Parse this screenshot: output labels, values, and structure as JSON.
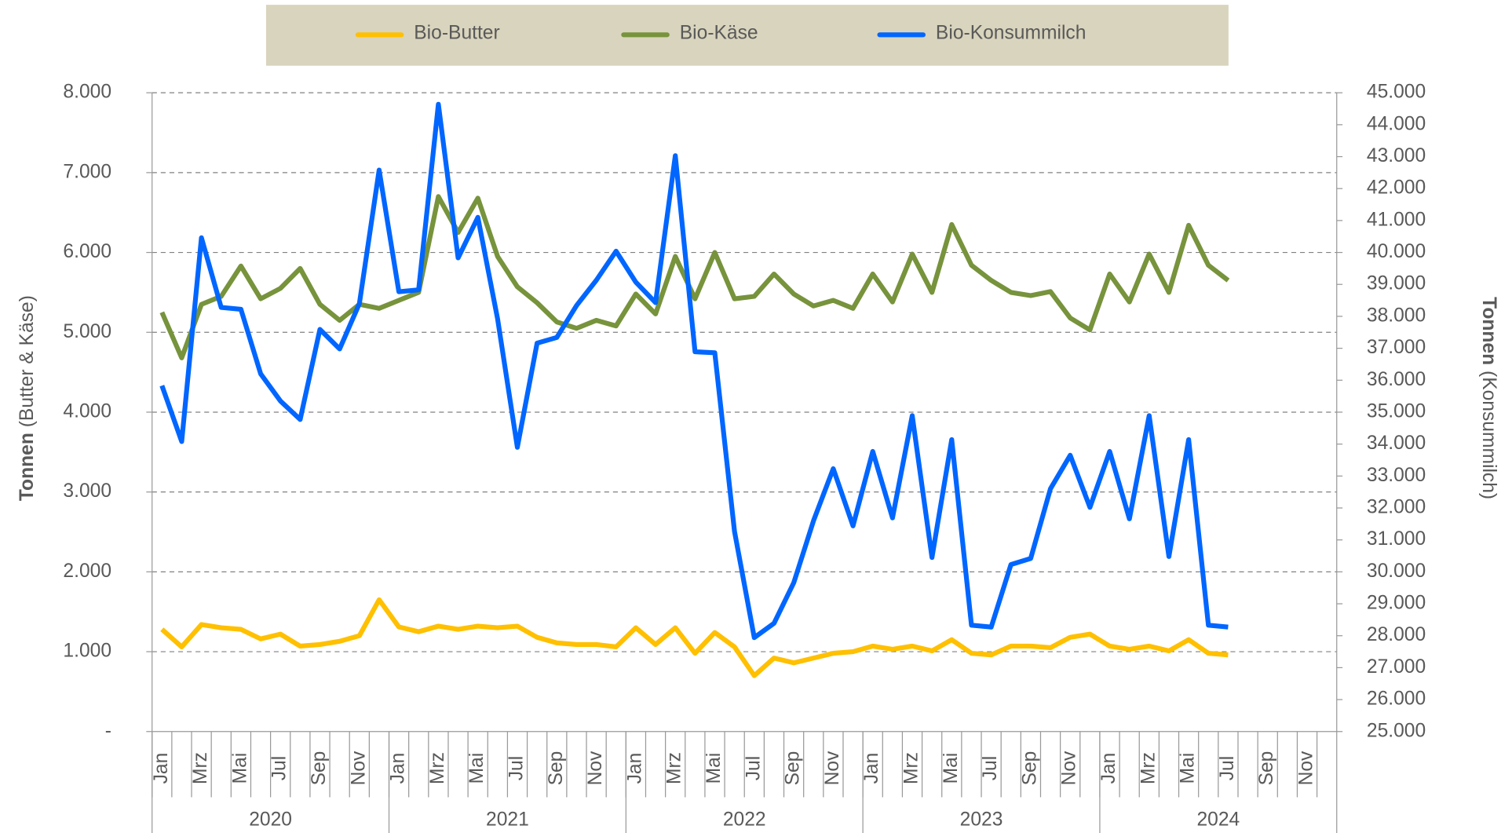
{
  "chart_data": {
    "type": "line",
    "categories": [
      "Jan",
      null,
      "Mrz",
      null,
      "Mai",
      null,
      "Jul",
      null,
      "Sep",
      null,
      "Nov",
      null,
      "Jan",
      null,
      "Mrz",
      null,
      "Mai",
      null,
      "Jul",
      null,
      "Sep",
      null,
      "Nov",
      null,
      "Jan",
      null,
      "Mrz",
      null,
      "Mai",
      null,
      "Jul",
      null,
      "Sep",
      null,
      "Nov",
      null,
      "Jan",
      null,
      "Mrz",
      null,
      "Mai",
      null,
      "Jul",
      null,
      "Sep",
      null,
      "Nov",
      null,
      "Jan",
      null,
      "Mrz",
      null,
      "Mai",
      null,
      "Jul",
      null,
      "Sep",
      null,
      "Nov",
      null
    ],
    "x_groups": [
      "2020",
      "2021",
      "2022",
      "2023",
      "2024"
    ],
    "ylabel": {
      "bold": "Tonnen",
      "rest": "(Butter & Käse)"
    },
    "y2label": {
      "bold": "Tonnen",
      "rest": "(Konsummilch)"
    },
    "ylim": [
      0,
      8000
    ],
    "yticks": [
      {
        "value": 0,
        "label": "-"
      },
      {
        "value": 1000,
        "label": "1.000"
      },
      {
        "value": 2000,
        "label": "2.000"
      },
      {
        "value": 3000,
        "label": "3.000"
      },
      {
        "value": 4000,
        "label": "4.000"
      },
      {
        "value": 5000,
        "label": "5.000"
      },
      {
        "value": 6000,
        "label": "6.000"
      },
      {
        "value": 7000,
        "label": "7.000"
      },
      {
        "value": 8000,
        "label": "8.000"
      }
    ],
    "y2lim": [
      25000,
      45000
    ],
    "y2ticks": [
      {
        "value": 25000,
        "label": "25.000"
      },
      {
        "value": 26000,
        "label": "26.000"
      },
      {
        "value": 27000,
        "label": "27.000"
      },
      {
        "value": 28000,
        "label": "28.000"
      },
      {
        "value": 29000,
        "label": "29.000"
      },
      {
        "value": 30000,
        "label": "30.000"
      },
      {
        "value": 31000,
        "label": "31.000"
      },
      {
        "value": 32000,
        "label": "32.000"
      },
      {
        "value": 33000,
        "label": "33.000"
      },
      {
        "value": 34000,
        "label": "34.000"
      },
      {
        "value": 35000,
        "label": "35.000"
      },
      {
        "value": 36000,
        "label": "36.000"
      },
      {
        "value": 37000,
        "label": "37.000"
      },
      {
        "value": 38000,
        "label": "38.000"
      },
      {
        "value": 39000,
        "label": "39.000"
      },
      {
        "value": 40000,
        "label": "40.000"
      },
      {
        "value": 41000,
        "label": "41.000"
      },
      {
        "value": 42000,
        "label": "42.000"
      },
      {
        "value": 43000,
        "label": "43.000"
      },
      {
        "value": 44000,
        "label": "44.000"
      },
      {
        "value": 45000,
        "label": "45.000"
      }
    ],
    "grid": true,
    "legend": "top",
    "series": [
      {
        "name": "Bio-Butter",
        "color": "#ffc000",
        "values": [
          1280,
          1060,
          1340,
          1300,
          1280,
          1160,
          1220,
          1070,
          1090,
          1130,
          1200,
          1650,
          1310,
          1250,
          1320,
          1280,
          1320,
          1300,
          1320,
          1180,
          1110,
          1090,
          1090,
          1060,
          1300,
          1090,
          1300,
          980,
          1240,
          1060,
          700,
          920,
          860,
          920,
          980,
          1000,
          1070,
          1030,
          1070,
          1010,
          1150,
          980,
          960,
          1070,
          1070,
          1050,
          1180,
          1220,
          1070,
          1030,
          1070,
          1010,
          1150,
          980,
          960,
          null,
          null,
          null,
          null,
          null
        ]
      },
      {
        "name": "Bio-Käse",
        "color": "#77933c",
        "values": [
          5250,
          4680,
          5350,
          5450,
          5830,
          5420,
          5550,
          5800,
          5350,
          5150,
          5350,
          5300,
          5400,
          5500,
          6700,
          6250,
          6680,
          5950,
          5570,
          5370,
          5130,
          5050,
          5150,
          5080,
          5480,
          5230,
          5950,
          5420,
          6000,
          5420,
          5450,
          5730,
          5480,
          5330,
          5400,
          5300,
          5730,
          5380,
          5980,
          5500,
          6350,
          5840,
          5650,
          5500,
          5460,
          5510,
          5180,
          5030,
          5730,
          5380,
          5980,
          5500,
          6340,
          5840,
          5650,
          null,
          null,
          null,
          null,
          null
        ]
      },
      {
        "name": "Bio-Konsummilch",
        "color": "#0066ff",
        "axis": "y2",
        "values": [
          35830,
          34080,
          40460,
          38280,
          38220,
          36200,
          35350,
          34770,
          37590,
          36980,
          38400,
          42580,
          38770,
          38830,
          44640,
          39830,
          41100,
          37920,
          33900,
          37160,
          37340,
          38340,
          39130,
          40040,
          39070,
          38430,
          43030,
          36890,
          36860,
          31260,
          27940,
          28390,
          29660,
          31600,
          33230,
          31440,
          33770,
          31690,
          34890,
          30450,
          34140,
          28330,
          28270,
          30230,
          30420,
          32600,
          33650,
          32020,
          33770,
          31660,
          34890,
          30480,
          34140,
          28330,
          28270,
          null,
          null,
          null,
          null,
          null
        ]
      }
    ]
  }
}
